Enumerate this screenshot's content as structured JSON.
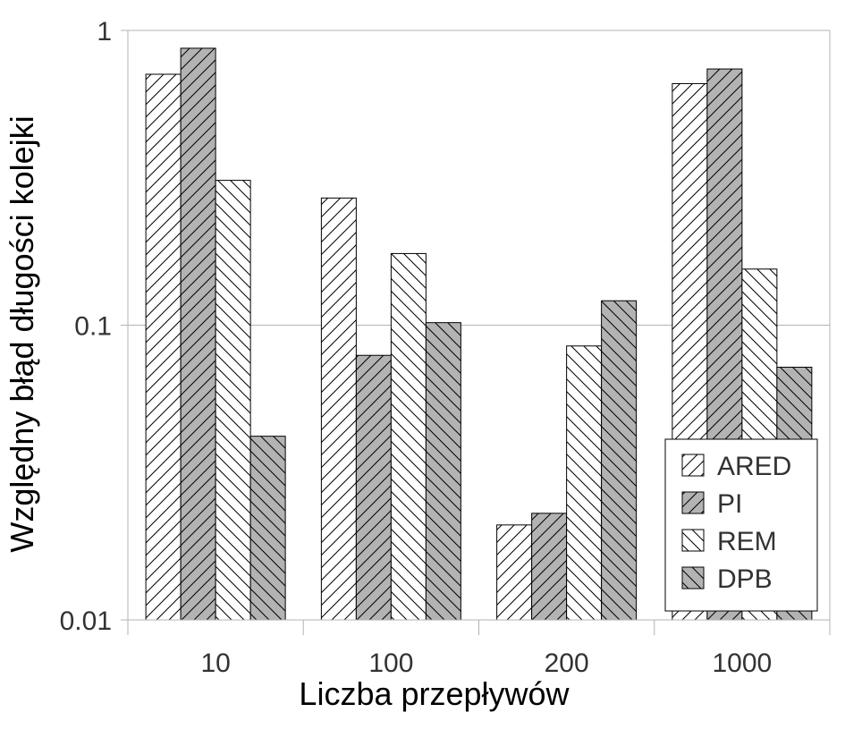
{
  "chart_data": {
    "type": "bar",
    "scale": "log",
    "ylim": [
      0.01,
      1
    ],
    "yticks": [
      "0.01",
      "0.1",
      "1"
    ],
    "grid": true,
    "legend_position": "bottom-right",
    "xlabel": "Liczba przepływów",
    "ylabel": "Względny błąd długości kolejki",
    "categories": [
      "10",
      "100",
      "200",
      "1000"
    ],
    "series": [
      {
        "name": "ARED",
        "values": [
          0.71,
          0.27,
          0.021,
          0.66
        ],
        "color": "#ffffff",
        "pattern": "diagonal-up"
      },
      {
        "name": "PI",
        "values": [
          0.87,
          0.079,
          0.023,
          0.74
        ],
        "color": "#b3b3b3",
        "pattern": "diagonal-up"
      },
      {
        "name": "REM",
        "values": [
          0.31,
          0.175,
          0.085,
          0.155
        ],
        "color": "#ffffff",
        "pattern": "diagonal-down"
      },
      {
        "name": "DPB",
        "values": [
          0.042,
          0.102,
          0.121,
          0.072
        ],
        "color": "#b3b3b3",
        "pattern": "diagonal-down"
      }
    ]
  }
}
